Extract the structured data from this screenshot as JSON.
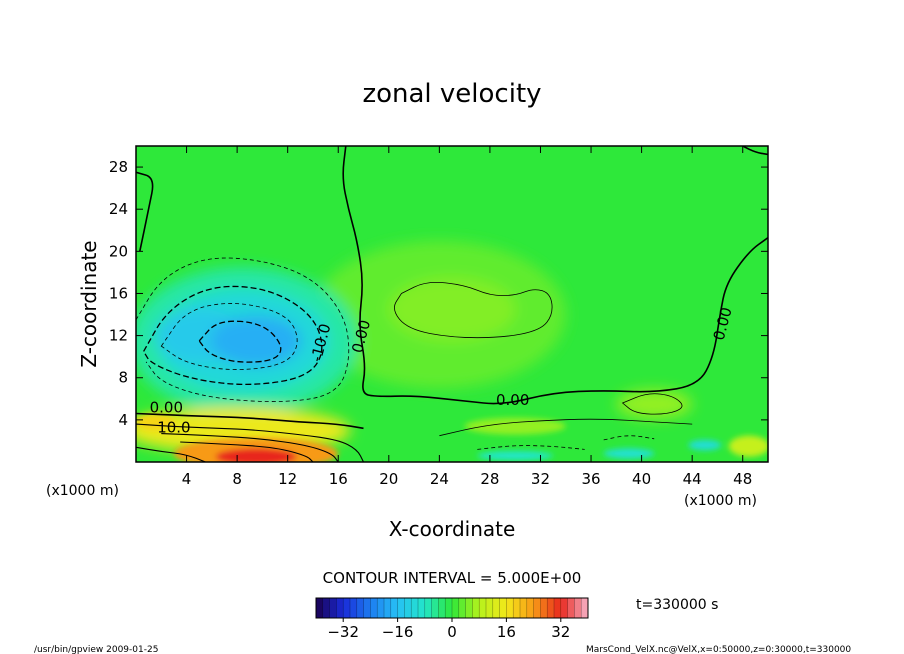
{
  "chart_data": {
    "type": "heatmap",
    "title": "zonal velocity",
    "xlabel": "X-coordinate",
    "ylabel": "Z-coordinate",
    "x_unit_label": "(x1000 m)",
    "y_unit_label": "(x1000 m)",
    "x_ticks": [
      4,
      8,
      12,
      16,
      20,
      24,
      28,
      32,
      36,
      40,
      44,
      48
    ],
    "y_ticks": [
      4,
      8,
      12,
      16,
      20,
      24,
      28
    ],
    "xlim": [
      0,
      50
    ],
    "ylim": [
      0,
      30
    ],
    "contour_interval_text": "CONTOUR INTERVAL = 5.000E+00",
    "time_text": "t=330000 s",
    "colorbar_ticks": [
      -32,
      -16,
      0,
      16,
      32
    ],
    "colorbar_range": [
      -40,
      40
    ],
    "contour_labels": [
      {
        "text": "0.00",
        "x": 2.4,
        "y": 4.7
      },
      {
        "text": "10.0",
        "x": 3.0,
        "y": 2.8
      },
      {
        "text": "-10.0",
        "x": 15.0,
        "y": 11.2
      },
      {
        "text": "0.00",
        "x": 18.2,
        "y": 11.8
      },
      {
        "text": "0.00",
        "x": 29.8,
        "y": 5.4
      },
      {
        "text": "0.00",
        "x": 46.8,
        "y": 13.0
      }
    ],
    "features": [
      {
        "name": "negative core",
        "x": 9.5,
        "y": 11.5,
        "value": -18
      },
      {
        "name": "negative lobe",
        "x": 5.0,
        "y": 12.0,
        "value": -14
      },
      {
        "name": "surface jet",
        "x": 9.5,
        "y": 0.5,
        "value": 32
      },
      {
        "name": "near-surface positive band",
        "x": 8.0,
        "y": 3.0,
        "value": 15
      },
      {
        "name": "upper positive patch",
        "x": 25.0,
        "y": 14.5,
        "value": 5
      },
      {
        "name": "lower positive patch",
        "x": 41.0,
        "y": 5.5,
        "value": 6
      },
      {
        "name": "surface negative streak",
        "x": 30.0,
        "y": 0.6,
        "value": -8
      },
      {
        "name": "right surface positive",
        "x": 48.5,
        "y": 1.5,
        "value": 10
      }
    ],
    "grid": false,
    "colormap": "rainbow"
  },
  "footer": {
    "left": "/usr/bin/gpview   2009-01-25",
    "right": "MarsCond_VelX.nc@VelX,x=0:50000,z=0:30000,t=330000"
  }
}
